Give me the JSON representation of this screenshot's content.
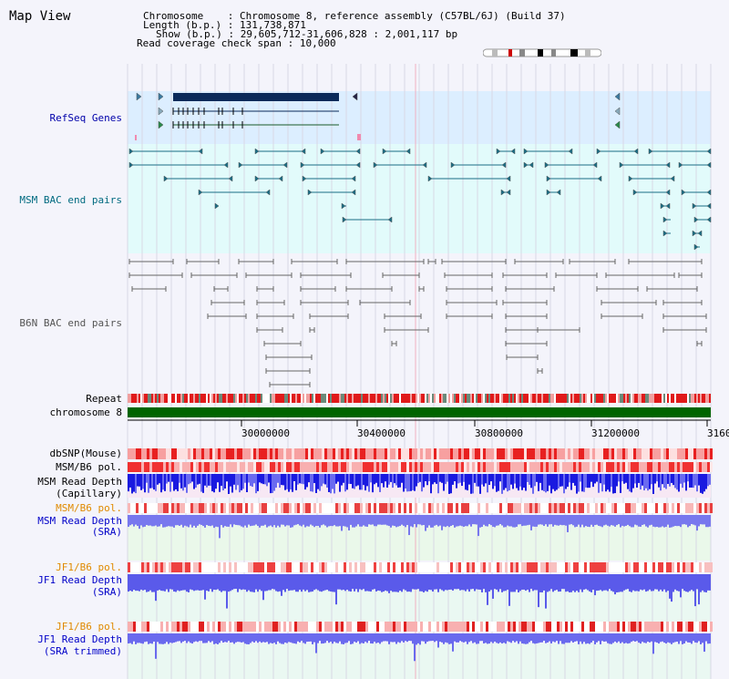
{
  "page": {
    "title": "Map View"
  },
  "info": {
    "chromosome_label": "Chromosome",
    "chromosome_value": "Chromosome 8, reference assembly (C57BL/6J) (Build 37)",
    "length_label": "Length (b.p.)",
    "length_value": "131,738,871",
    "show_label": "Show (b.p.)",
    "show_value": "29,605,712-31,606,828 : 2,001,117 bp",
    "coverage_label": "Read coverage check span",
    "coverage_value": "10,000"
  },
  "tracks": {
    "refseq": "RefSeq Genes",
    "msm_bac": "MSM BAC end pairs",
    "b6n_bac": "B6N BAC end pairs",
    "repeat": "Repeat",
    "chromosome": "chromosome 8",
    "dbsnp": "dbSNP(Mouse)",
    "msm_b6_pol_1": "MSM/B6 pol.",
    "msm_depth_cap_1": "MSM Read Depth",
    "msm_depth_cap_2": "(Capillary)",
    "msm_b6_pol_2": "MSM/B6 pol.",
    "msm_depth_sra_1": "MSM Read Depth",
    "msm_depth_sra_2": "(SRA)",
    "jf1_b6_pol_1": "JF1/B6 pol.",
    "jf1_depth_sra_1": "JF1 Read Depth",
    "jf1_depth_sra_2": "(SRA)",
    "jf1_b6_pol_2": "JF1/B6 pol.",
    "jf1_trim_1": "JF1 Read Depth",
    "jf1_trim_2": "(SRA trimmed)"
  },
  "axis": {
    "ticks": [
      "30000000",
      "30400000",
      "30800000",
      "31200000",
      "3160"
    ]
  },
  "colors": {
    "refseq_bg": "#dceeff",
    "msm_bg": "#e2fbfb",
    "gene_dark": "#0a2a5a",
    "msm_feature": "#1a6e86",
    "b6n_feature": "#666666",
    "chromosome_bar": "#006400",
    "snp_red": "#ee3030",
    "depth_blue": "#2828e6"
  }
}
